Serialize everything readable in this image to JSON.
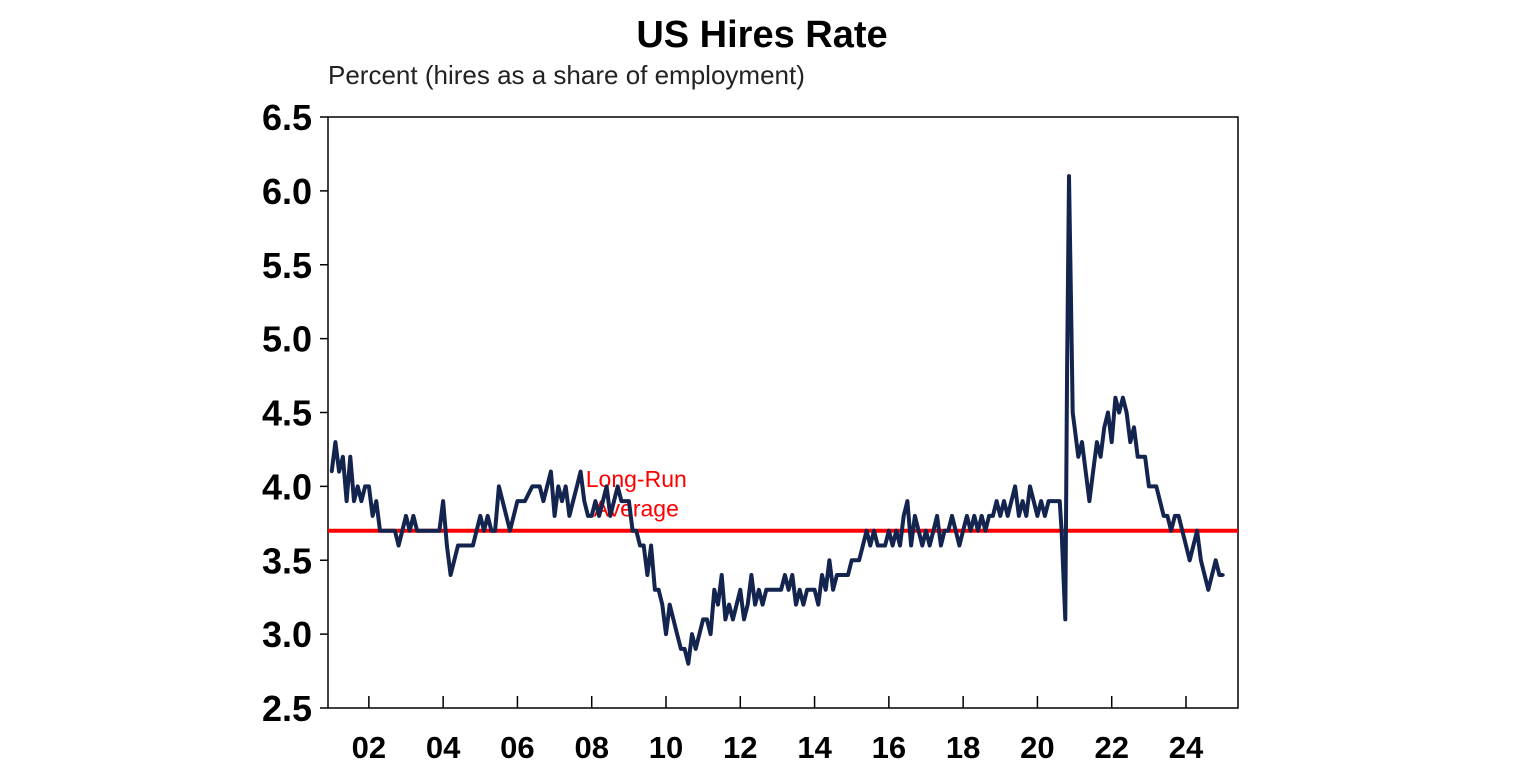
{
  "chart_data": {
    "type": "line",
    "title": "US Hires Rate",
    "subtitle": "Percent (hires as a share of employment)",
    "ylim": [
      2.5,
      6.5
    ],
    "yticks": [
      "6.5",
      "6.0",
      "5.5",
      "5.0",
      "4.5",
      "4.0",
      "3.5",
      "3.0",
      "2.5"
    ],
    "xlim": [
      2000.9,
      2025.4
    ],
    "xticks": [
      {
        "label": "02",
        "year": 2002
      },
      {
        "label": "04",
        "year": 2004
      },
      {
        "label": "06",
        "year": 2006
      },
      {
        "label": "08",
        "year": 2008
      },
      {
        "label": "10",
        "year": 2010
      },
      {
        "label": "12",
        "year": 2012
      },
      {
        "label": "14",
        "year": 2014
      },
      {
        "label": "16",
        "year": 2016
      },
      {
        "label": "18",
        "year": 2018
      },
      {
        "label": "20",
        "year": 2020
      },
      {
        "label": "22",
        "year": 2022
      },
      {
        "label": "24",
        "year": 2024
      }
    ],
    "grid": false,
    "colors": {
      "series": "#13244f",
      "reference": "#ff0000"
    },
    "reference_line": {
      "value": 3.7,
      "label_line1": "Long-Run",
      "label_line2": "Average",
      "label_year": 2009.2
    },
    "series": [
      {
        "color": "#13244f",
        "points": [
          [
            2001.0,
            4.1
          ],
          [
            2001.1,
            4.3
          ],
          [
            2001.2,
            4.1
          ],
          [
            2001.3,
            4.2
          ],
          [
            2001.4,
            3.9
          ],
          [
            2001.5,
            4.2
          ],
          [
            2001.6,
            3.9
          ],
          [
            2001.7,
            4.0
          ],
          [
            2001.8,
            3.9
          ],
          [
            2001.9,
            4.0
          ],
          [
            2002.0,
            4.0
          ],
          [
            2002.1,
            3.8
          ],
          [
            2002.2,
            3.9
          ],
          [
            2002.3,
            3.7
          ],
          [
            2002.5,
            3.7
          ],
          [
            2002.7,
            3.7
          ],
          [
            2002.8,
            3.6
          ],
          [
            2002.9,
            3.7
          ],
          [
            2003.0,
            3.8
          ],
          [
            2003.1,
            3.7
          ],
          [
            2003.2,
            3.8
          ],
          [
            2003.3,
            3.7
          ],
          [
            2003.5,
            3.7
          ],
          [
            2003.7,
            3.7
          ],
          [
            2003.9,
            3.7
          ],
          [
            2004.0,
            3.9
          ],
          [
            2004.1,
            3.6
          ],
          [
            2004.2,
            3.4
          ],
          [
            2004.4,
            3.6
          ],
          [
            2004.6,
            3.6
          ],
          [
            2004.8,
            3.6
          ],
          [
            2004.9,
            3.7
          ],
          [
            2005.0,
            3.8
          ],
          [
            2005.1,
            3.7
          ],
          [
            2005.2,
            3.8
          ],
          [
            2005.3,
            3.7
          ],
          [
            2005.4,
            3.7
          ],
          [
            2005.5,
            4.0
          ],
          [
            2005.6,
            3.9
          ],
          [
            2005.7,
            3.8
          ],
          [
            2005.8,
            3.7
          ],
          [
            2005.9,
            3.8
          ],
          [
            2006.0,
            3.9
          ],
          [
            2006.2,
            3.9
          ],
          [
            2006.4,
            4.0
          ],
          [
            2006.6,
            4.0
          ],
          [
            2006.7,
            3.9
          ],
          [
            2006.8,
            4.0
          ],
          [
            2006.9,
            4.1
          ],
          [
            2007.0,
            3.8
          ],
          [
            2007.1,
            4.0
          ],
          [
            2007.2,
            3.9
          ],
          [
            2007.3,
            4.0
          ],
          [
            2007.4,
            3.8
          ],
          [
            2007.5,
            3.9
          ],
          [
            2007.6,
            4.0
          ],
          [
            2007.7,
            4.1
          ],
          [
            2007.8,
            3.9
          ],
          [
            2007.9,
            3.8
          ],
          [
            2008.0,
            3.8
          ],
          [
            2008.1,
            3.9
          ],
          [
            2008.2,
            3.8
          ],
          [
            2008.3,
            3.9
          ],
          [
            2008.4,
            4.0
          ],
          [
            2008.5,
            3.8
          ],
          [
            2008.6,
            3.9
          ],
          [
            2008.7,
            4.0
          ],
          [
            2008.8,
            3.9
          ],
          [
            2008.9,
            3.9
          ],
          [
            2009.0,
            3.9
          ],
          [
            2009.1,
            3.7
          ],
          [
            2009.2,
            3.7
          ],
          [
            2009.3,
            3.6
          ],
          [
            2009.4,
            3.6
          ],
          [
            2009.5,
            3.4
          ],
          [
            2009.6,
            3.6
          ],
          [
            2009.7,
            3.3
          ],
          [
            2009.8,
            3.3
          ],
          [
            2009.9,
            3.2
          ],
          [
            2010.0,
            3.0
          ],
          [
            2010.1,
            3.2
          ],
          [
            2010.2,
            3.1
          ],
          [
            2010.3,
            3.0
          ],
          [
            2010.4,
            2.9
          ],
          [
            2010.5,
            2.9
          ],
          [
            2010.6,
            2.8
          ],
          [
            2010.7,
            3.0
          ],
          [
            2010.8,
            2.9
          ],
          [
            2010.9,
            3.0
          ],
          [
            2011.0,
            3.1
          ],
          [
            2011.1,
            3.1
          ],
          [
            2011.2,
            3.0
          ],
          [
            2011.3,
            3.3
          ],
          [
            2011.4,
            3.2
          ],
          [
            2011.5,
            3.4
          ],
          [
            2011.6,
            3.1
          ],
          [
            2011.7,
            3.2
          ],
          [
            2011.8,
            3.1
          ],
          [
            2011.9,
            3.2
          ],
          [
            2012.0,
            3.3
          ],
          [
            2012.1,
            3.1
          ],
          [
            2012.2,
            3.2
          ],
          [
            2012.3,
            3.4
          ],
          [
            2012.4,
            3.2
          ],
          [
            2012.5,
            3.3
          ],
          [
            2012.6,
            3.2
          ],
          [
            2012.7,
            3.3
          ],
          [
            2012.9,
            3.3
          ],
          [
            2013.0,
            3.3
          ],
          [
            2013.1,
            3.3
          ],
          [
            2013.2,
            3.4
          ],
          [
            2013.3,
            3.3
          ],
          [
            2013.4,
            3.4
          ],
          [
            2013.5,
            3.2
          ],
          [
            2013.6,
            3.3
          ],
          [
            2013.7,
            3.2
          ],
          [
            2013.8,
            3.3
          ],
          [
            2014.0,
            3.3
          ],
          [
            2014.1,
            3.2
          ],
          [
            2014.2,
            3.4
          ],
          [
            2014.3,
            3.3
          ],
          [
            2014.4,
            3.5
          ],
          [
            2014.5,
            3.3
          ],
          [
            2014.6,
            3.4
          ],
          [
            2014.7,
            3.4
          ],
          [
            2014.9,
            3.4
          ],
          [
            2015.0,
            3.5
          ],
          [
            2015.2,
            3.5
          ],
          [
            2015.3,
            3.6
          ],
          [
            2015.4,
            3.7
          ],
          [
            2015.5,
            3.6
          ],
          [
            2015.6,
            3.7
          ],
          [
            2015.7,
            3.6
          ],
          [
            2015.8,
            3.6
          ],
          [
            2015.9,
            3.6
          ],
          [
            2016.0,
            3.7
          ],
          [
            2016.1,
            3.6
          ],
          [
            2016.2,
            3.7
          ],
          [
            2016.3,
            3.6
          ],
          [
            2016.4,
            3.8
          ],
          [
            2016.5,
            3.9
          ],
          [
            2016.6,
            3.6
          ],
          [
            2016.7,
            3.8
          ],
          [
            2016.8,
            3.7
          ],
          [
            2016.9,
            3.6
          ],
          [
            2017.0,
            3.7
          ],
          [
            2017.1,
            3.6
          ],
          [
            2017.2,
            3.7
          ],
          [
            2017.3,
            3.8
          ],
          [
            2017.4,
            3.6
          ],
          [
            2017.5,
            3.7
          ],
          [
            2017.6,
            3.7
          ],
          [
            2017.7,
            3.8
          ],
          [
            2017.8,
            3.7
          ],
          [
            2017.9,
            3.6
          ],
          [
            2018.0,
            3.7
          ],
          [
            2018.1,
            3.8
          ],
          [
            2018.2,
            3.7
          ],
          [
            2018.3,
            3.8
          ],
          [
            2018.4,
            3.7
          ],
          [
            2018.5,
            3.8
          ],
          [
            2018.6,
            3.7
          ],
          [
            2018.7,
            3.8
          ],
          [
            2018.8,
            3.8
          ],
          [
            2018.9,
            3.9
          ],
          [
            2019.0,
            3.8
          ],
          [
            2019.1,
            3.9
          ],
          [
            2019.2,
            3.8
          ],
          [
            2019.3,
            3.9
          ],
          [
            2019.4,
            4.0
          ],
          [
            2019.5,
            3.8
          ],
          [
            2019.6,
            3.9
          ],
          [
            2019.7,
            3.8
          ],
          [
            2019.8,
            4.0
          ],
          [
            2019.9,
            3.9
          ],
          [
            2020.0,
            3.8
          ],
          [
            2020.1,
            3.9
          ],
          [
            2020.2,
            3.8
          ],
          [
            2020.3,
            3.9
          ],
          [
            2020.5,
            3.9
          ],
          [
            2020.6,
            3.9
          ],
          [
            2020.65,
            3.7
          ],
          [
            2020.7,
            3.4
          ],
          [
            2020.75,
            3.1
          ],
          [
            2020.8,
            4.8
          ],
          [
            2020.85,
            6.1
          ],
          [
            2020.9,
            5.3
          ],
          [
            2020.95,
            4.5
          ],
          [
            2021.0,
            4.4
          ],
          [
            2021.1,
            4.2
          ],
          [
            2021.2,
            4.3
          ],
          [
            2021.3,
            4.1
          ],
          [
            2021.4,
            3.9
          ],
          [
            2021.5,
            4.1
          ],
          [
            2021.6,
            4.3
          ],
          [
            2021.7,
            4.2
          ],
          [
            2021.8,
            4.4
          ],
          [
            2021.9,
            4.5
          ],
          [
            2022.0,
            4.3
          ],
          [
            2022.1,
            4.6
          ],
          [
            2022.2,
            4.5
          ],
          [
            2022.3,
            4.6
          ],
          [
            2022.4,
            4.5
          ],
          [
            2022.5,
            4.3
          ],
          [
            2022.6,
            4.4
          ],
          [
            2022.7,
            4.2
          ],
          [
            2022.8,
            4.2
          ],
          [
            2022.9,
            4.2
          ],
          [
            2023.0,
            4.0
          ],
          [
            2023.1,
            4.0
          ],
          [
            2023.2,
            4.0
          ],
          [
            2023.3,
            3.9
          ],
          [
            2023.4,
            3.8
          ],
          [
            2023.5,
            3.8
          ],
          [
            2023.6,
            3.7
          ],
          [
            2023.7,
            3.8
          ],
          [
            2023.8,
            3.8
          ],
          [
            2023.9,
            3.7
          ],
          [
            2024.0,
            3.6
          ],
          [
            2024.1,
            3.5
          ],
          [
            2024.2,
            3.6
          ],
          [
            2024.3,
            3.7
          ],
          [
            2024.4,
            3.5
          ],
          [
            2024.5,
            3.4
          ],
          [
            2024.6,
            3.3
          ],
          [
            2024.7,
            3.4
          ],
          [
            2024.8,
            3.5
          ],
          [
            2024.9,
            3.4
          ],
          [
            2025.0,
            3.4
          ]
        ]
      }
    ]
  }
}
